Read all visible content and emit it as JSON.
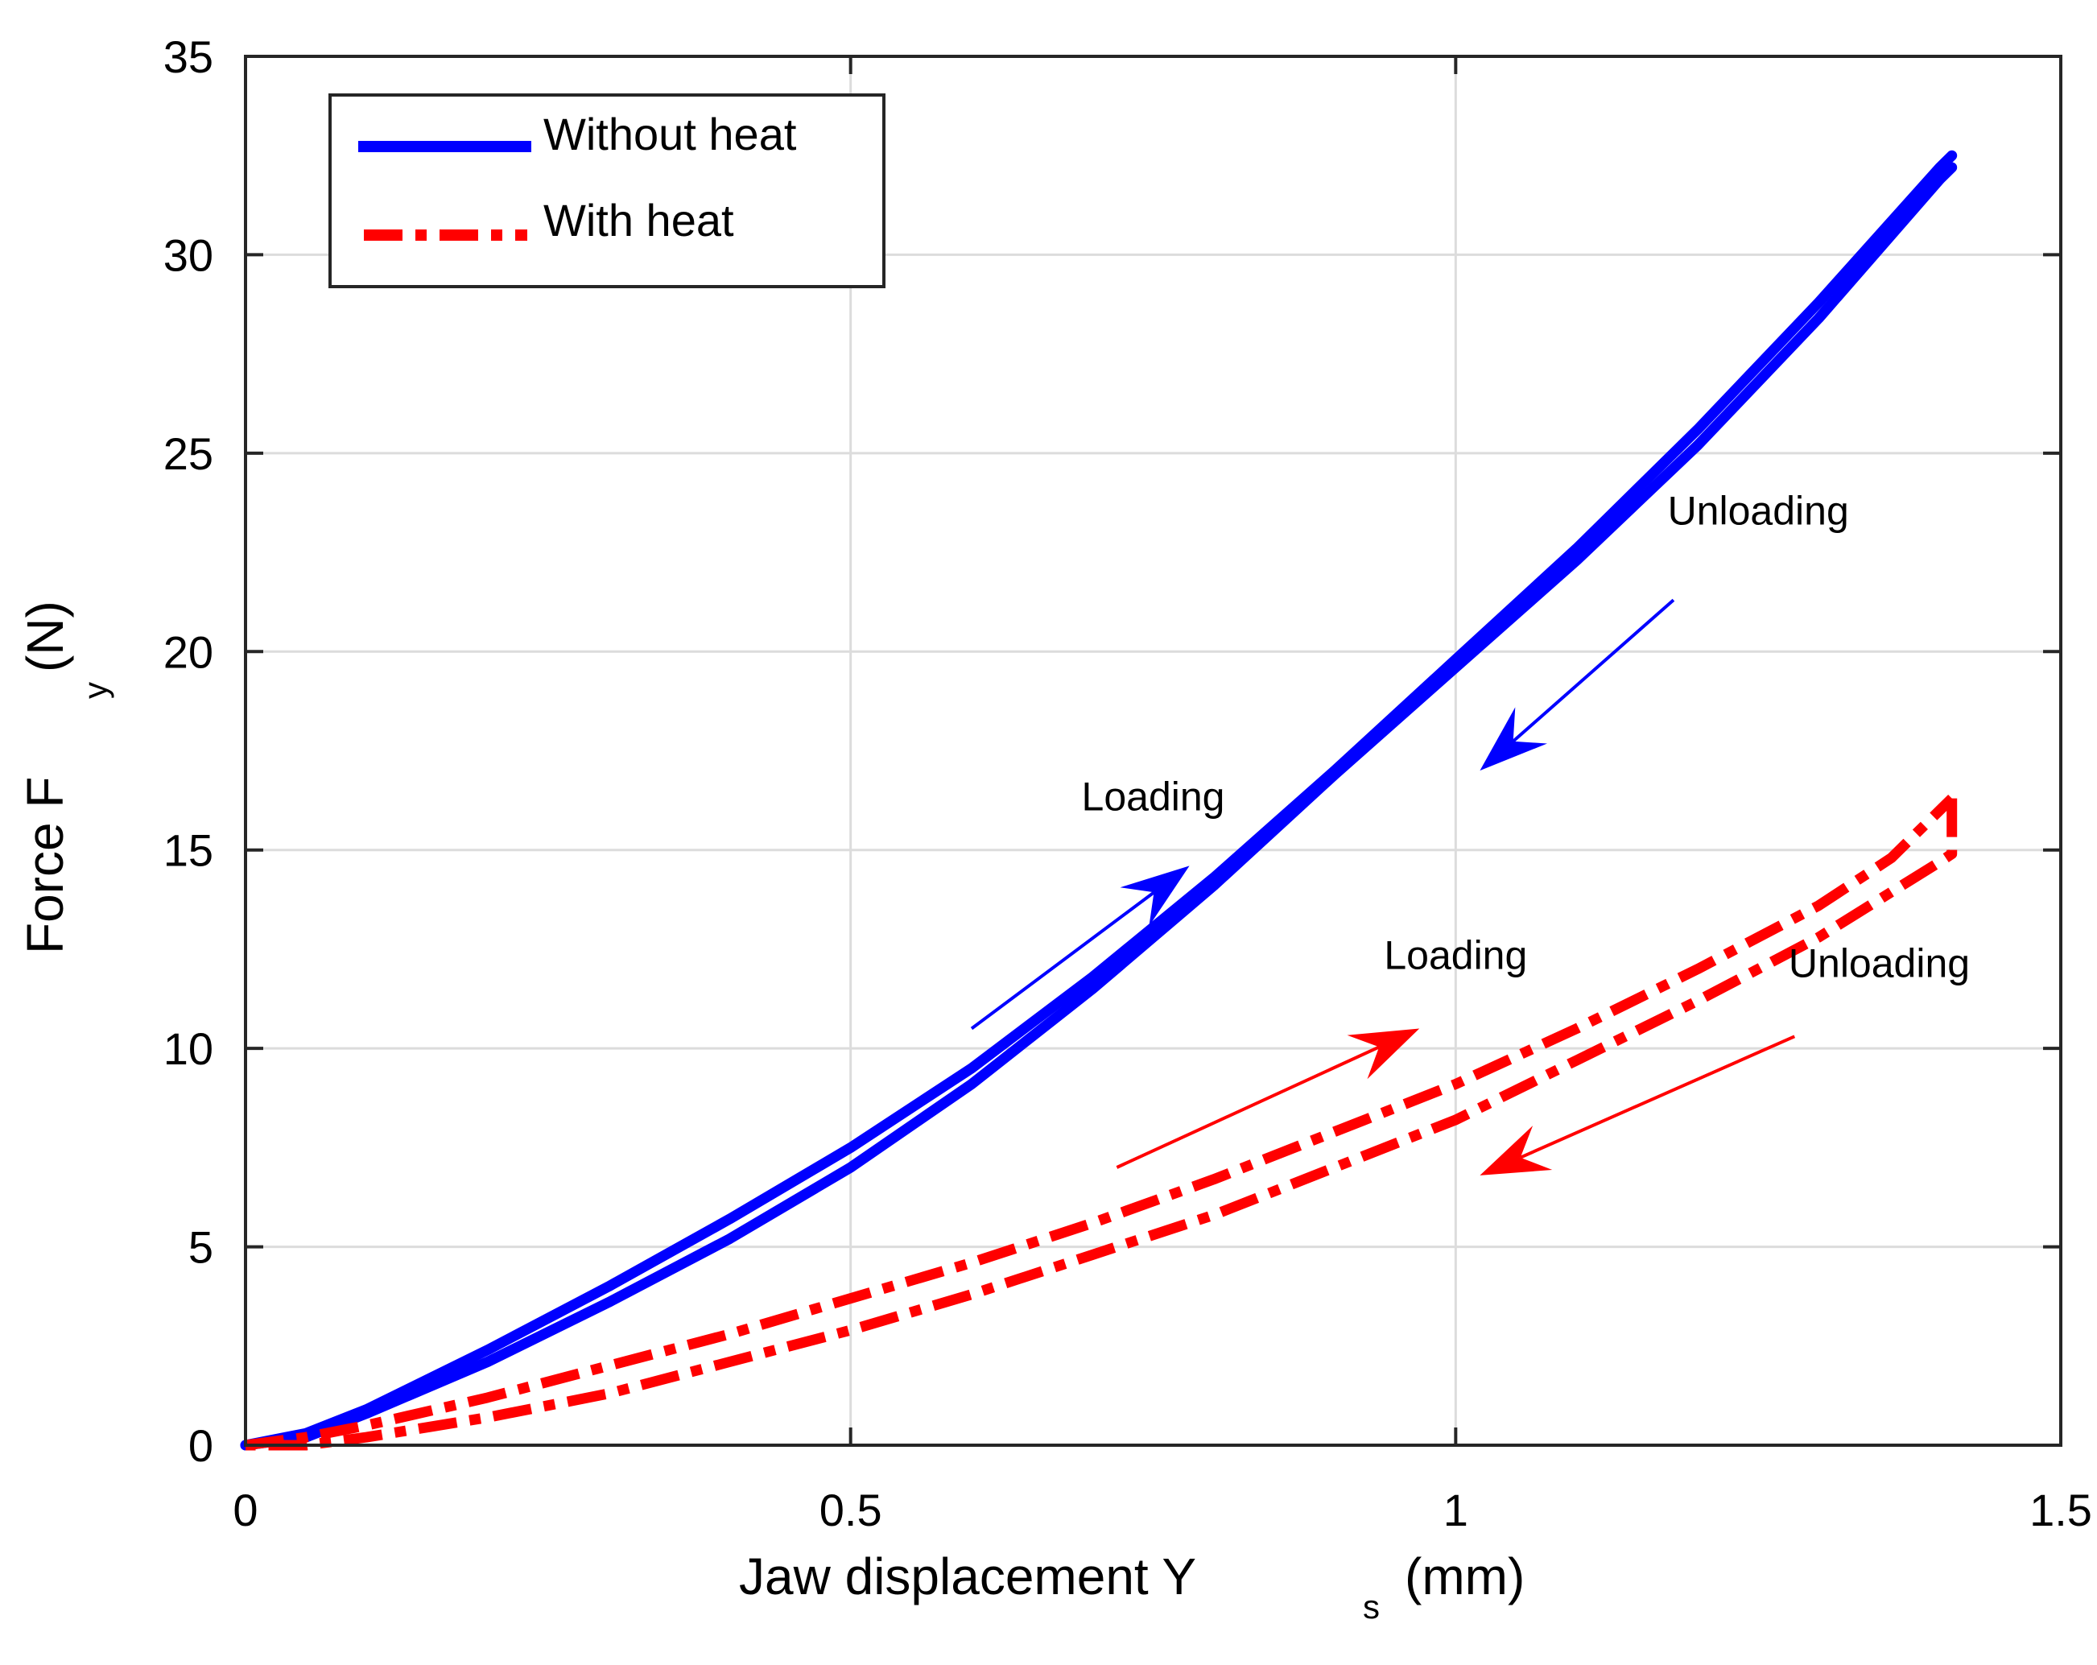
{
  "chart_data": {
    "type": "line",
    "title": "",
    "xlabel": {
      "main": "Jaw displacement Y",
      "sub": "s",
      "unit": "(mm)"
    },
    "ylabel": {
      "main": "Force F",
      "sub": "y",
      "unit": "(N)"
    },
    "xlim": [
      0,
      1.5
    ],
    "ylim": [
      0,
      35
    ],
    "xticks": [
      0,
      0.5,
      1,
      1.5
    ],
    "xtick_labels": [
      "0",
      "0.5",
      "1",
      "1.5"
    ],
    "yticks": [
      0,
      5,
      10,
      15,
      20,
      25,
      30,
      35
    ],
    "ytick_labels": [
      "0",
      "5",
      "10",
      "15",
      "20",
      "25",
      "30",
      "35"
    ],
    "grid": true,
    "legend_position": "top-left",
    "series": [
      {
        "name": "Without heat",
        "color": "#0000ff",
        "style": "solid",
        "branches": [
          {
            "phase": "loading",
            "x": [
              0,
              0.05,
              0.1,
              0.2,
              0.3,
              0.4,
              0.5,
              0.6,
              0.7,
              0.8,
              0.9,
              1.0,
              1.1,
              1.2,
              1.3,
              1.4,
              1.41
            ],
            "y": [
              0,
              0.3,
              0.9,
              2.4,
              4.0,
              5.7,
              7.5,
              9.5,
              11.8,
              14.3,
              17.0,
              19.8,
              22.6,
              25.6,
              28.8,
              32.2,
              32.5
            ]
          },
          {
            "phase": "unloading",
            "x": [
              1.41,
              1.4,
              1.3,
              1.2,
              1.1,
              1.0,
              0.9,
              0.8,
              0.7,
              0.6,
              0.5,
              0.4,
              0.3,
              0.2,
              0.1,
              0.05,
              0
            ],
            "y": [
              32.2,
              31.9,
              28.4,
              25.2,
              22.3,
              19.6,
              16.9,
              14.1,
              11.5,
              9.1,
              7.0,
              5.2,
              3.6,
              2.1,
              0.8,
              0.2,
              0
            ]
          }
        ]
      },
      {
        "name": "With heat",
        "color": "#ff0000",
        "style": "dash-dot",
        "branches": [
          {
            "phase": "loading",
            "x": [
              0,
              0.05,
              0.1,
              0.2,
              0.3,
              0.4,
              0.5,
              0.6,
              0.7,
              0.8,
              0.9,
              1.0,
              1.1,
              1.2,
              1.3,
              1.36,
              1.41
            ],
            "y": [
              0,
              0.2,
              0.5,
              1.2,
              2.0,
              2.8,
              3.7,
              4.6,
              5.6,
              6.7,
              7.9,
              9.1,
              10.5,
              12.0,
              13.6,
              14.8,
              16.3
            ]
          },
          {
            "phase": "unloading",
            "x": [
              1.41,
              1.41,
              1.4,
              1.3,
              1.2,
              1.1,
              1.0,
              0.9,
              0.8,
              0.7,
              0.6,
              0.5,
              0.4,
              0.3,
              0.2,
              0.1,
              0.05,
              0
            ],
            "y": [
              16.3,
              14.9,
              14.7,
              12.8,
              11.2,
              9.7,
              8.2,
              7.0,
              5.8,
              4.8,
              3.8,
              2.9,
              2.1,
              1.3,
              0.7,
              0.2,
              0,
              0
            ]
          }
        ]
      }
    ],
    "annotations": [
      {
        "text": "Loading",
        "series": "Without heat",
        "x": 0.75,
        "y": 16.0
      },
      {
        "text": "Unloading",
        "series": "Without heat",
        "x": 1.25,
        "y": 23.2
      },
      {
        "text": "Loading",
        "series": "With heat",
        "x": 1.0,
        "y": 12.0
      },
      {
        "text": "Unloading",
        "series": "With heat",
        "x": 1.35,
        "y": 11.8
      }
    ],
    "arrows": [
      {
        "series": "Without heat",
        "color": "#0000ff",
        "from": [
          0.6,
          10.5
        ],
        "to": [
          0.78,
          14.6
        ]
      },
      {
        "series": "Without heat",
        "color": "#0000ff",
        "from": [
          1.18,
          21.3
        ],
        "to": [
          1.02,
          17.0
        ]
      },
      {
        "series": "With heat",
        "color": "#ff0000",
        "from": [
          0.72,
          7.0
        ],
        "to": [
          0.97,
          10.5
        ]
      },
      {
        "series": "With heat",
        "color": "#ff0000",
        "from": [
          1.28,
          10.3
        ],
        "to": [
          1.02,
          6.8
        ]
      }
    ]
  }
}
